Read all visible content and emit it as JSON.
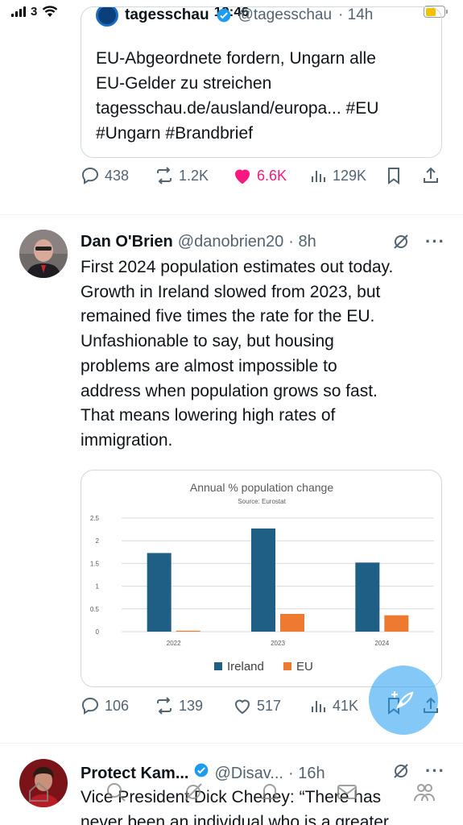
{
  "status_bar": {
    "carrier": "3",
    "time": "19:46"
  },
  "quoted_tweet": {
    "name": "tagesschau",
    "handle": "@tagesschau",
    "time": "· 14h",
    "text_lines": [
      "EU-Abgeordnete fordern, Ungarn alle",
      "EU-Gelder zu streichen",
      "tagesschau.de/ausland/europa... #EU",
      "#Ungarn #Brandbrief"
    ]
  },
  "quoted_actions": {
    "replies": "438",
    "retweets": "1.2K",
    "likes": "6.6K",
    "views": "129K",
    "liked": true
  },
  "tweet": {
    "name": "Dan O'Brien",
    "handle": "@danobrien20",
    "time": "· 8h",
    "text_lines": [
      "First 2024 population estimates out today.",
      "Growth in Ireland slowed from 2023, but",
      "remained five times the rate for the EU.",
      "Unfashionable to say, but housing",
      "problems are almost impossible to",
      "address when population grows so fast.",
      "That means lowering high rates of",
      "immigration."
    ]
  },
  "tweet_actions": {
    "replies": "106",
    "retweets": "139",
    "likes": "517",
    "views": "41K"
  },
  "chart_data": {
    "type": "bar",
    "title": "Annual % population change",
    "subtitle": "Source: Eurostat",
    "categories": [
      "2022",
      "2023",
      "2024"
    ],
    "series": [
      {
        "name": "Ireland",
        "values": [
          1.73,
          2.27,
          1.52
        ],
        "color": "#1f5f85"
      },
      {
        "name": "EU",
        "values": [
          0.02,
          0.39,
          0.36
        ],
        "color": "#ee7a31"
      }
    ],
    "ylim": [
      0,
      2.5
    ],
    "yticks": [
      "0",
      "0.5",
      "1",
      "1.5",
      "2",
      "2.5"
    ],
    "grid": true,
    "legend": "bottom"
  },
  "next_tweet": {
    "name": "Protect Kam...",
    "handle": "@Disav...",
    "time": "· 16h",
    "text_lines": [
      "Vice President Dick Cheney: “There has",
      "never been an individual who is a greater"
    ]
  },
  "icons": {
    "reply": "reply-icon",
    "retweet": "retweet-icon",
    "like": "heart-icon",
    "views": "views-icon",
    "bookmark": "bookmark-icon",
    "share": "share-icon",
    "grok": "grok-icon",
    "more": "more-icon",
    "compose": "compose-icon"
  }
}
